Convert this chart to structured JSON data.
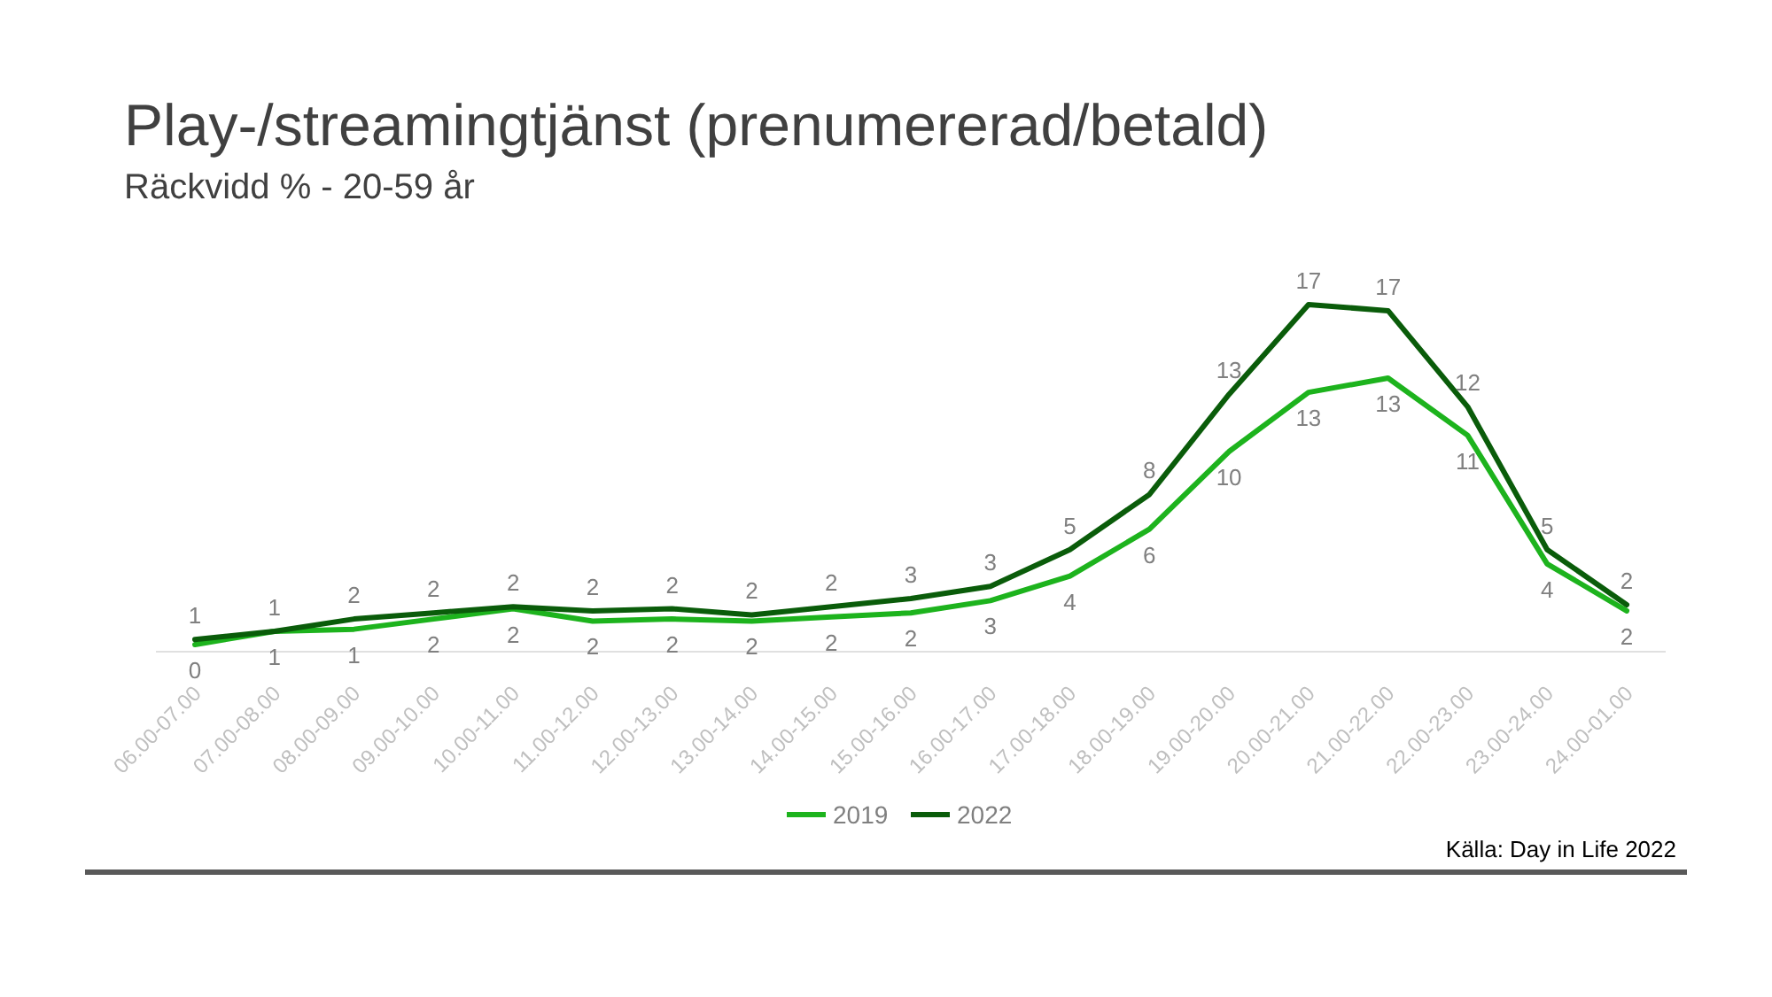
{
  "chart_data": {
    "type": "line",
    "title": "Play-/streamingtjänst (prenumererad/betald)",
    "subtitle": "Räckvidd % - 20-59 år",
    "categories": [
      "06.00-07.00",
      "07.00-08.00",
      "08.00-09.00",
      "09.00-10.00",
      "10.00-11.00",
      "11.00-12.00",
      "12.00-13.00",
      "13.00-14.00",
      "14.00-15.00",
      "15.00-16.00",
      "16.00-17.00",
      "17.00-18.00",
      "18.00-19.00",
      "19.00-20.00",
      "20.00-21.00",
      "21.00-22.00",
      "22.00-23.00",
      "23.00-24.00",
      "24.00-01.00"
    ],
    "series": [
      {
        "name": "2019",
        "color": "#1db31d",
        "values": [
          0.35,
          1.0,
          1.1,
          1.6,
          2.1,
          1.5,
          1.6,
          1.5,
          1.7,
          1.9,
          2.5,
          3.7,
          6.0,
          9.8,
          12.7,
          13.4,
          10.6,
          4.3,
          2.0
        ],
        "value_labels": [
          "0",
          "1",
          "1",
          "2",
          "2",
          "2",
          "2",
          "2",
          "2",
          "2",
          "3",
          "4",
          "6",
          "10",
          "13",
          "13",
          "11",
          "4",
          "2"
        ]
      },
      {
        "name": "2022",
        "color": "#0a5c0a",
        "values": [
          0.6,
          1.0,
          1.6,
          1.9,
          2.2,
          2.0,
          2.1,
          1.8,
          2.2,
          2.6,
          3.2,
          5.0,
          7.7,
          12.6,
          17.0,
          16.7,
          12.0,
          5.0,
          2.3
        ],
        "value_labels": [
          "1",
          "1",
          "2",
          "2",
          "2",
          "2",
          "2",
          "2",
          "2",
          "3",
          "3",
          "5",
          "8",
          "13",
          "17",
          "17",
          "12",
          "5",
          "2"
        ]
      }
    ],
    "legend": "bottom",
    "marker": "none",
    "line_style": "solid",
    "annotations": [
      "Källa: Day in Life 2022"
    ]
  }
}
